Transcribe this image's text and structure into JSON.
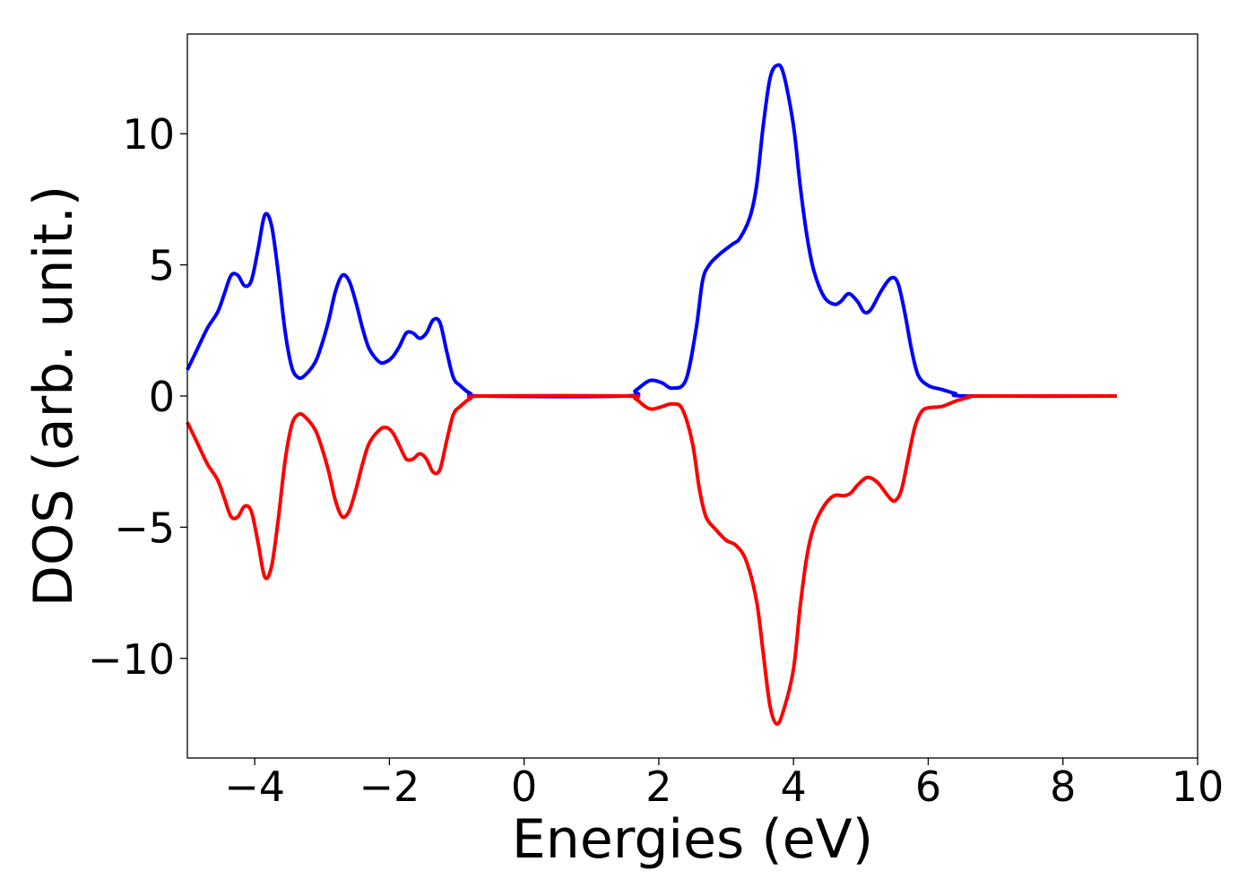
{
  "chart_data": {
    "type": "line",
    "title": "",
    "xlabel": "Energies (eV)",
    "ylabel": "DOS (arb. unit.)",
    "xlim": [
      -5,
      10
    ],
    "ylim": [
      -13.8,
      13.8
    ],
    "xticks": [
      -4,
      -2,
      0,
      2,
      4,
      6,
      8,
      10
    ],
    "xtick_labels": [
      "−4",
      "−2",
      "0",
      "2",
      "4",
      "6",
      "8",
      "10"
    ],
    "yticks": [
      10,
      5,
      0,
      -5,
      -10
    ],
    "ytick_labels": [
      "10",
      "5",
      "0",
      "−5",
      "−10"
    ],
    "grid": false,
    "legend": "none",
    "series": [
      {
        "color": "#0000ff",
        "points": [
          [
            -5.0,
            1.0
          ],
          [
            -4.85,
            1.8
          ],
          [
            -4.7,
            2.6
          ],
          [
            -4.55,
            3.2
          ],
          [
            -4.45,
            3.9
          ],
          [
            -4.35,
            4.6
          ],
          [
            -4.25,
            4.6
          ],
          [
            -4.15,
            4.2
          ],
          [
            -4.05,
            4.4
          ],
          [
            -3.95,
            5.6
          ],
          [
            -3.85,
            6.9
          ],
          [
            -3.75,
            6.5
          ],
          [
            -3.65,
            4.7
          ],
          [
            -3.55,
            2.5
          ],
          [
            -3.45,
            1.1
          ],
          [
            -3.35,
            0.7
          ],
          [
            -3.25,
            0.8
          ],
          [
            -3.1,
            1.3
          ],
          [
            -3.0,
            2.0
          ],
          [
            -2.9,
            2.9
          ],
          [
            -2.8,
            4.0
          ],
          [
            -2.7,
            4.6
          ],
          [
            -2.6,
            4.4
          ],
          [
            -2.5,
            3.6
          ],
          [
            -2.4,
            2.6
          ],
          [
            -2.3,
            1.8
          ],
          [
            -2.15,
            1.3
          ],
          [
            -2.05,
            1.3
          ],
          [
            -1.95,
            1.5
          ],
          [
            -1.85,
            1.9
          ],
          [
            -1.75,
            2.4
          ],
          [
            -1.65,
            2.4
          ],
          [
            -1.55,
            2.2
          ],
          [
            -1.45,
            2.4
          ],
          [
            -1.35,
            2.9
          ],
          [
            -1.25,
            2.8
          ],
          [
            -1.15,
            1.7
          ],
          [
            -1.05,
            0.7
          ],
          [
            -0.95,
            0.4
          ],
          [
            -0.8,
            0.1
          ],
          [
            -0.6,
            0.0
          ],
          [
            1.5,
            0.0
          ],
          [
            1.65,
            0.2
          ],
          [
            1.8,
            0.5
          ],
          [
            1.9,
            0.6
          ],
          [
            2.05,
            0.5
          ],
          [
            2.2,
            0.3
          ],
          [
            2.4,
            0.6
          ],
          [
            2.55,
            2.5
          ],
          [
            2.65,
            4.4
          ],
          [
            2.75,
            5.0
          ],
          [
            2.9,
            5.4
          ],
          [
            3.1,
            5.8
          ],
          [
            3.2,
            6.0
          ],
          [
            3.35,
            6.8
          ],
          [
            3.45,
            8.0
          ],
          [
            3.55,
            10.3
          ],
          [
            3.65,
            12.1
          ],
          [
            3.75,
            12.6
          ],
          [
            3.85,
            12.3
          ],
          [
            4.0,
            10.3
          ],
          [
            4.1,
            8.0
          ],
          [
            4.2,
            6.1
          ],
          [
            4.3,
            4.8
          ],
          [
            4.45,
            3.8
          ],
          [
            4.6,
            3.5
          ],
          [
            4.7,
            3.6
          ],
          [
            4.82,
            3.9
          ],
          [
            4.95,
            3.6
          ],
          [
            5.05,
            3.2
          ],
          [
            5.15,
            3.3
          ],
          [
            5.3,
            4.0
          ],
          [
            5.45,
            4.5
          ],
          [
            5.55,
            4.3
          ],
          [
            5.65,
            3.2
          ],
          [
            5.75,
            1.8
          ],
          [
            5.85,
            0.8
          ],
          [
            6.0,
            0.4
          ],
          [
            6.2,
            0.25
          ],
          [
            6.4,
            0.1
          ],
          [
            6.6,
            0.0
          ],
          [
            8.8,
            0.0
          ]
        ]
      },
      {
        "color": "#ff0000",
        "points": [
          [
            -5.0,
            -1.0
          ],
          [
            -4.85,
            -1.8
          ],
          [
            -4.7,
            -2.6
          ],
          [
            -4.55,
            -3.2
          ],
          [
            -4.45,
            -3.9
          ],
          [
            -4.35,
            -4.6
          ],
          [
            -4.25,
            -4.6
          ],
          [
            -4.15,
            -4.2
          ],
          [
            -4.05,
            -4.4
          ],
          [
            -3.95,
            -5.6
          ],
          [
            -3.85,
            -6.9
          ],
          [
            -3.75,
            -6.5
          ],
          [
            -3.65,
            -4.7
          ],
          [
            -3.55,
            -2.5
          ],
          [
            -3.45,
            -1.1
          ],
          [
            -3.35,
            -0.7
          ],
          [
            -3.25,
            -0.8
          ],
          [
            -3.1,
            -1.3
          ],
          [
            -3.0,
            -2.0
          ],
          [
            -2.9,
            -2.9
          ],
          [
            -2.8,
            -4.0
          ],
          [
            -2.7,
            -4.6
          ],
          [
            -2.6,
            -4.4
          ],
          [
            -2.5,
            -3.6
          ],
          [
            -2.4,
            -2.6
          ],
          [
            -2.3,
            -1.8
          ],
          [
            -2.15,
            -1.3
          ],
          [
            -2.05,
            -1.2
          ],
          [
            -1.95,
            -1.4
          ],
          [
            -1.85,
            -1.9
          ],
          [
            -1.75,
            -2.4
          ],
          [
            -1.65,
            -2.4
          ],
          [
            -1.55,
            -2.2
          ],
          [
            -1.45,
            -2.4
          ],
          [
            -1.35,
            -2.9
          ],
          [
            -1.25,
            -2.8
          ],
          [
            -1.15,
            -1.7
          ],
          [
            -1.05,
            -0.7
          ],
          [
            -0.95,
            -0.4
          ],
          [
            -0.8,
            -0.1
          ],
          [
            -0.6,
            0.0
          ],
          [
            1.5,
            0.0
          ],
          [
            1.65,
            -0.1
          ],
          [
            1.8,
            -0.4
          ],
          [
            1.9,
            -0.5
          ],
          [
            2.05,
            -0.4
          ],
          [
            2.2,
            -0.3
          ],
          [
            2.35,
            -0.5
          ],
          [
            2.5,
            -1.8
          ],
          [
            2.6,
            -3.5
          ],
          [
            2.7,
            -4.6
          ],
          [
            2.85,
            -5.1
          ],
          [
            3.0,
            -5.5
          ],
          [
            3.15,
            -5.7
          ],
          [
            3.3,
            -6.3
          ],
          [
            3.45,
            -7.8
          ],
          [
            3.55,
            -9.8
          ],
          [
            3.65,
            -11.8
          ],
          [
            3.75,
            -12.5
          ],
          [
            3.85,
            -12.0
          ],
          [
            4.0,
            -10.4
          ],
          [
            4.1,
            -8.0
          ],
          [
            4.2,
            -6.1
          ],
          [
            4.3,
            -5.0
          ],
          [
            4.45,
            -4.2
          ],
          [
            4.6,
            -3.8
          ],
          [
            4.75,
            -3.8
          ],
          [
            4.85,
            -3.7
          ],
          [
            4.95,
            -3.4
          ],
          [
            5.1,
            -3.1
          ],
          [
            5.25,
            -3.3
          ],
          [
            5.4,
            -3.8
          ],
          [
            5.5,
            -4.0
          ],
          [
            5.6,
            -3.6
          ],
          [
            5.7,
            -2.4
          ],
          [
            5.8,
            -1.2
          ],
          [
            5.9,
            -0.6
          ],
          [
            6.0,
            -0.45
          ],
          [
            6.2,
            -0.4
          ],
          [
            6.4,
            -0.2
          ],
          [
            6.6,
            -0.05
          ],
          [
            6.8,
            0.0
          ],
          [
            8.8,
            0.0
          ]
        ]
      }
    ]
  }
}
